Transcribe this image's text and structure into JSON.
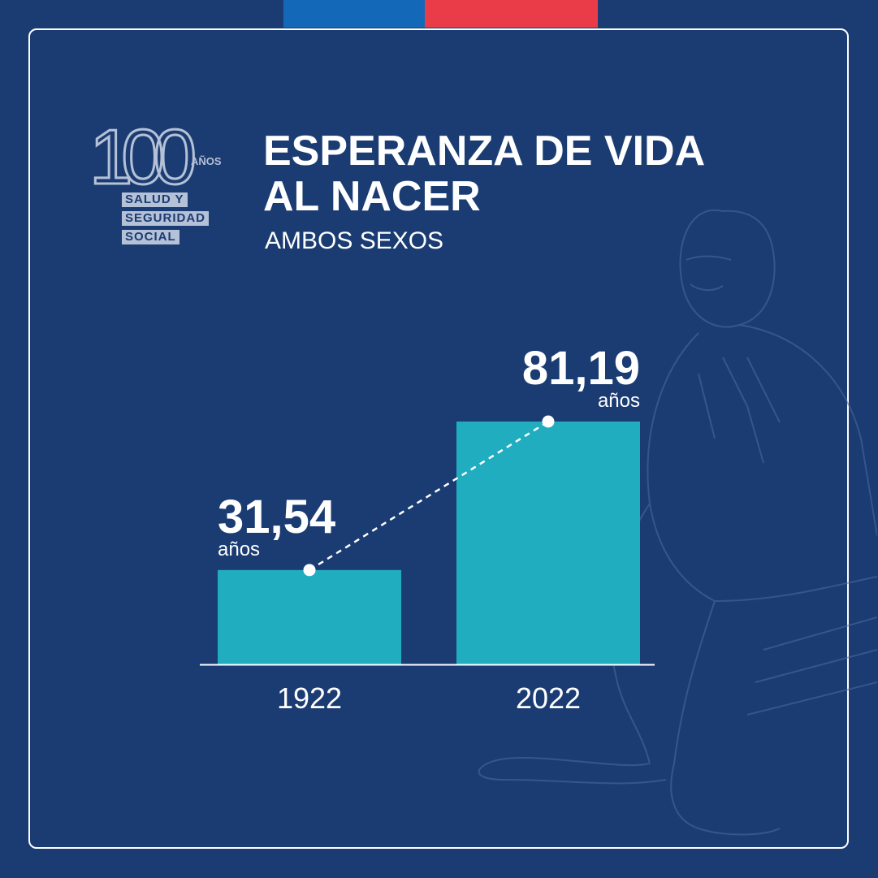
{
  "logo": {
    "number": "100",
    "anos": "AÑOS",
    "tag_line_1": "SALUD Y",
    "tag_line_2": "SEGURIDAD",
    "tag_line_3": "SOCIAL"
  },
  "title_line_1": "ESPERANZA DE VIDA",
  "title_line_2": "AL NACER",
  "subtitle": "AMBOS SEXOS",
  "colors": {
    "background": "#1b3c72",
    "bar": "#1fadbf",
    "flag_blue": "#1369b8",
    "flag_red": "#ea3b48"
  },
  "chart_data": {
    "type": "bar",
    "categories": [
      "1922",
      "2022"
    ],
    "values": [
      31.54,
      81.19
    ],
    "value_labels": [
      "31,54",
      "81,19"
    ],
    "unit": "años",
    "trend_line": "dashed",
    "ylim": [
      0,
      81.19
    ]
  }
}
